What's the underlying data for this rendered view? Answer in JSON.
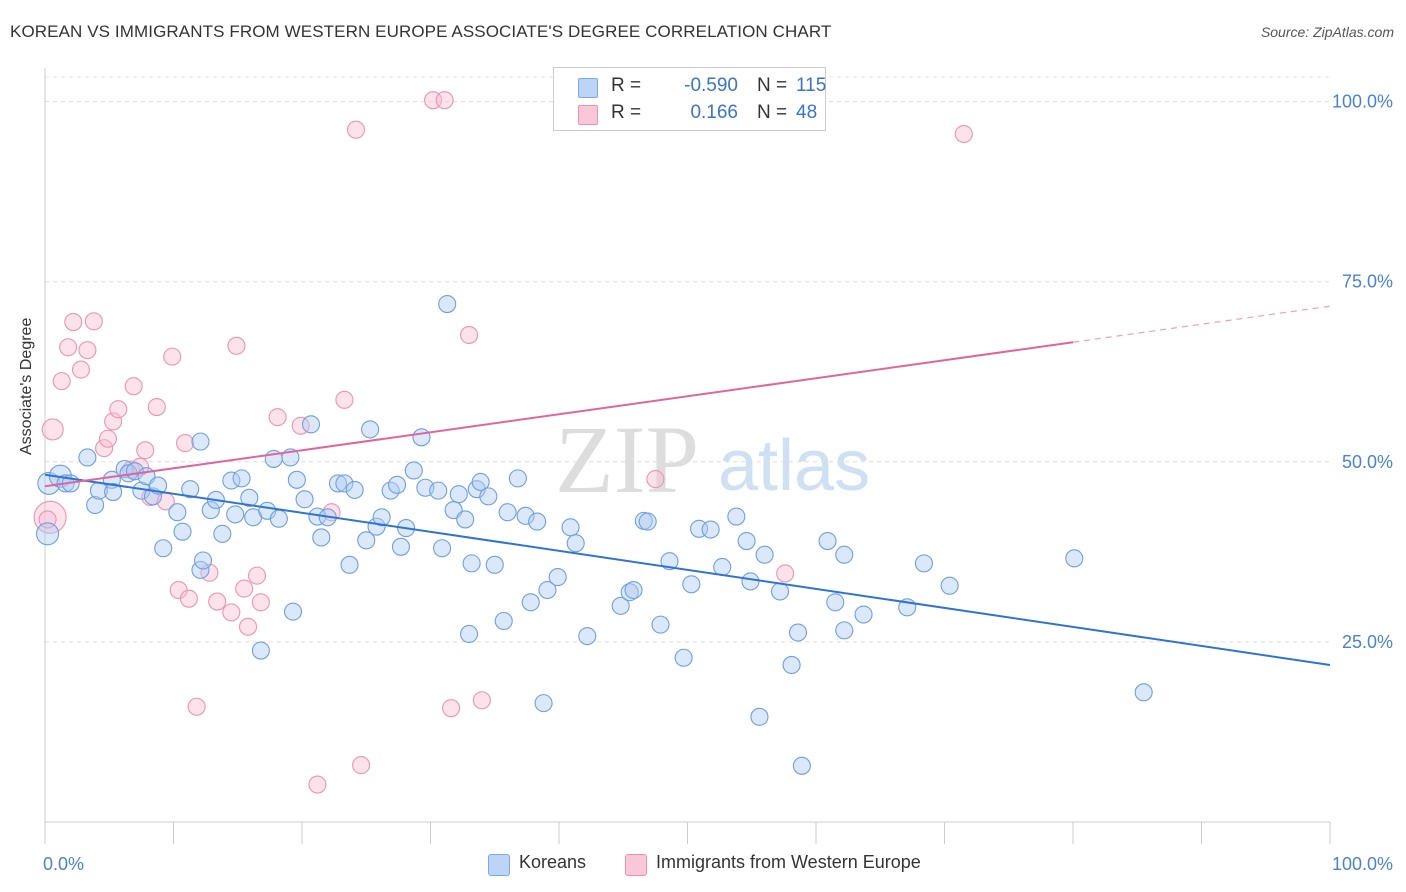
{
  "title": "KOREAN VS IMMIGRANTS FROM WESTERN EUROPE ASSOCIATE'S DEGREE CORRELATION CHART",
  "source": "Source: ZipAtlas.com",
  "watermark": {
    "zip": "ZIP",
    "atlas": "atlas"
  },
  "legend_box": {
    "rows": [
      {
        "r_label": "R =",
        "r_value": "-0.590",
        "n_label": "N =",
        "n_value": "115",
        "color": "#7aaae8",
        "fill": "#bcd4f5"
      },
      {
        "r_label": "R =",
        "r_value": "0.166",
        "n_label": "N =",
        "n_value": "48",
        "color": "#f090b0",
        "fill": "#f8c7d8"
      }
    ]
  },
  "chart_data": {
    "type": "scatter",
    "title": "KOREAN VS IMMIGRANTS FROM WESTERN EUROPE ASSOCIATE'S DEGREE CORRELATION CHART",
    "xlabel": "",
    "ylabel": "Associate's Degree",
    "xlim": [
      0,
      100
    ],
    "ylim": [
      0,
      103
    ],
    "x_tick_labels": [
      "0.0%",
      "100.0%"
    ],
    "y_tick_labels": [
      "25.0%",
      "50.0%",
      "75.0%",
      "100.0%"
    ],
    "y_ticks": [
      25,
      50,
      75,
      100
    ],
    "grid": "horizontal dashed",
    "legend_position": "bottom-center",
    "colors": {
      "Koreans": "#5b93dd",
      "Immigrants from Western Europe": "#ec8fad",
      "koreans_line": "#2f74d0",
      "immigrants_line": "#e0669a"
    },
    "series": [
      {
        "name": "Koreans",
        "trend": {
          "x": [
            0,
            100
          ],
          "y": [
            48.2,
            21.8
          ]
        },
        "points": [
          [
            0.2,
            40.0
          ],
          [
            0.3,
            47.0
          ],
          [
            1.2,
            48.0
          ],
          [
            1.6,
            47.0
          ],
          [
            2.0,
            47.0
          ],
          [
            3.3,
            50.6
          ],
          [
            3.9,
            44.0
          ],
          [
            4.2,
            46.0
          ],
          [
            5.2,
            47.5
          ],
          [
            5.3,
            45.8
          ],
          [
            6.2,
            49.0
          ],
          [
            6.5,
            48.4
          ],
          [
            7.0,
            48.7
          ],
          [
            7.5,
            46.0
          ],
          [
            7.9,
            48.0
          ],
          [
            8.4,
            45.2
          ],
          [
            8.8,
            46.7
          ],
          [
            9.2,
            38.0
          ],
          [
            10.3,
            43.0
          ],
          [
            10.7,
            40.3
          ],
          [
            11.3,
            46.2
          ],
          [
            12.1,
            52.8
          ],
          [
            12.1,
            35.0
          ],
          [
            12.3,
            36.3
          ],
          [
            12.9,
            43.3
          ],
          [
            13.3,
            44.7
          ],
          [
            13.8,
            40.0
          ],
          [
            14.5,
            47.4
          ],
          [
            14.8,
            42.7
          ],
          [
            15.3,
            47.7
          ],
          [
            15.9,
            45.0
          ],
          [
            16.2,
            42.3
          ],
          [
            16.8,
            23.8
          ],
          [
            17.3,
            43.2
          ],
          [
            17.8,
            50.4
          ],
          [
            18.2,
            42.1
          ],
          [
            19.1,
            50.6
          ],
          [
            19.3,
            29.2
          ],
          [
            19.6,
            47.5
          ],
          [
            20.2,
            44.8
          ],
          [
            20.7,
            55.2
          ],
          [
            21.2,
            42.4
          ],
          [
            21.5,
            39.5
          ],
          [
            22.0,
            42.3
          ],
          [
            22.8,
            47.0
          ],
          [
            23.3,
            47.0
          ],
          [
            23.7,
            35.7
          ],
          [
            24.1,
            46.1
          ],
          [
            25.0,
            39.1
          ],
          [
            25.3,
            54.5
          ],
          [
            25.8,
            41.0
          ],
          [
            26.2,
            42.3
          ],
          [
            26.9,
            46.0
          ],
          [
            27.4,
            46.8
          ],
          [
            27.7,
            38.2
          ],
          [
            28.1,
            40.8
          ],
          [
            28.7,
            48.8
          ],
          [
            29.3,
            53.4
          ],
          [
            29.6,
            46.4
          ],
          [
            30.6,
            46.0
          ],
          [
            30.9,
            38.0
          ],
          [
            31.3,
            71.9
          ],
          [
            31.8,
            43.3
          ],
          [
            32.2,
            45.5
          ],
          [
            32.7,
            42.0
          ],
          [
            33.0,
            26.1
          ],
          [
            33.2,
            35.9
          ],
          [
            33.6,
            46.2
          ],
          [
            33.9,
            47.2
          ],
          [
            34.5,
            45.2
          ],
          [
            35.0,
            35.7
          ],
          [
            35.7,
            27.9
          ],
          [
            36.0,
            43.0
          ],
          [
            36.8,
            47.7
          ],
          [
            37.4,
            42.5
          ],
          [
            37.8,
            30.5
          ],
          [
            38.3,
            41.7
          ],
          [
            38.8,
            16.5
          ],
          [
            39.1,
            32.2
          ],
          [
            39.9,
            34.0
          ],
          [
            40.9,
            40.9
          ],
          [
            41.3,
            38.7
          ],
          [
            42.2,
            25.8
          ],
          [
            44.8,
            30.0
          ],
          [
            45.5,
            31.9
          ],
          [
            45.8,
            32.2
          ],
          [
            46.6,
            41.8
          ],
          [
            46.9,
            41.7
          ],
          [
            47.9,
            27.4
          ],
          [
            48.6,
            36.2
          ],
          [
            49.7,
            22.8
          ],
          [
            50.3,
            33.0
          ],
          [
            50.9,
            40.7
          ],
          [
            51.8,
            40.6
          ],
          [
            52.7,
            35.4
          ],
          [
            53.8,
            42.4
          ],
          [
            54.6,
            39.0
          ],
          [
            54.9,
            33.4
          ],
          [
            55.6,
            14.6
          ],
          [
            56.0,
            37.1
          ],
          [
            57.2,
            32.0
          ],
          [
            58.1,
            21.8
          ],
          [
            58.6,
            26.3
          ],
          [
            58.9,
            7.8
          ],
          [
            60.9,
            39.0
          ],
          [
            61.5,
            30.5
          ],
          [
            62.2,
            26.6
          ],
          [
            62.2,
            37.1
          ],
          [
            63.7,
            28.8
          ],
          [
            67.1,
            29.8
          ],
          [
            68.4,
            35.9
          ],
          [
            70.4,
            32.8
          ],
          [
            80.1,
            36.6
          ],
          [
            85.5,
            18.0
          ]
        ]
      },
      {
        "name": "Immigrants from Western Europe",
        "trend": {
          "x": [
            0,
            80
          ],
          "y": [
            46.6,
            66.6
          ]
        },
        "trend_dashed": {
          "x": [
            80,
            100
          ],
          "y": [
            66.6,
            71.6
          ]
        },
        "points": [
          [
            0.4,
            42.3
          ],
          [
            0.6,
            54.5
          ],
          [
            1.3,
            61.2
          ],
          [
            1.8,
            65.9
          ],
          [
            2.2,
            69.4
          ],
          [
            2.8,
            62.8
          ],
          [
            3.3,
            65.5
          ],
          [
            3.8,
            69.5
          ],
          [
            4.6,
            51.9
          ],
          [
            4.9,
            53.2
          ],
          [
            5.3,
            55.6
          ],
          [
            5.7,
            57.3
          ],
          [
            6.7,
            48.9
          ],
          [
            6.9,
            60.5
          ],
          [
            7.4,
            49.3
          ],
          [
            7.8,
            51.6
          ],
          [
            8.2,
            45.1
          ],
          [
            8.7,
            57.6
          ],
          [
            9.4,
            44.5
          ],
          [
            9.9,
            64.6
          ],
          [
            10.4,
            32.2
          ],
          [
            10.9,
            52.6
          ],
          [
            11.2,
            31.0
          ],
          [
            11.8,
            16.0
          ],
          [
            12.8,
            34.6
          ],
          [
            13.4,
            30.6
          ],
          [
            14.5,
            29.1
          ],
          [
            14.9,
            66.1
          ],
          [
            15.5,
            32.4
          ],
          [
            15.8,
            27.1
          ],
          [
            16.5,
            34.2
          ],
          [
            16.8,
            30.5
          ],
          [
            18.1,
            56.2
          ],
          [
            19.9,
            55.0
          ],
          [
            21.2,
            5.2
          ],
          [
            22.3,
            43.0
          ],
          [
            23.3,
            58.6
          ],
          [
            24.2,
            96.1
          ],
          [
            24.6,
            7.9
          ],
          [
            30.2,
            100.2
          ],
          [
            31.1,
            100.2
          ],
          [
            31.6,
            15.8
          ],
          [
            33.0,
            67.6
          ],
          [
            34.0,
            16.9
          ],
          [
            47.5,
            47.6
          ],
          [
            57.6,
            34.5
          ],
          [
            71.5,
            95.5
          ],
          [
            0.2,
            42.0
          ]
        ]
      }
    ]
  },
  "bottom_legend": [
    {
      "label": "Koreans",
      "color": "#7aaae8",
      "fill": "#bcd4f5"
    },
    {
      "label": "Immigrants from Western Europe",
      "color": "#f090b0",
      "fill": "#f8c7d8"
    }
  ]
}
